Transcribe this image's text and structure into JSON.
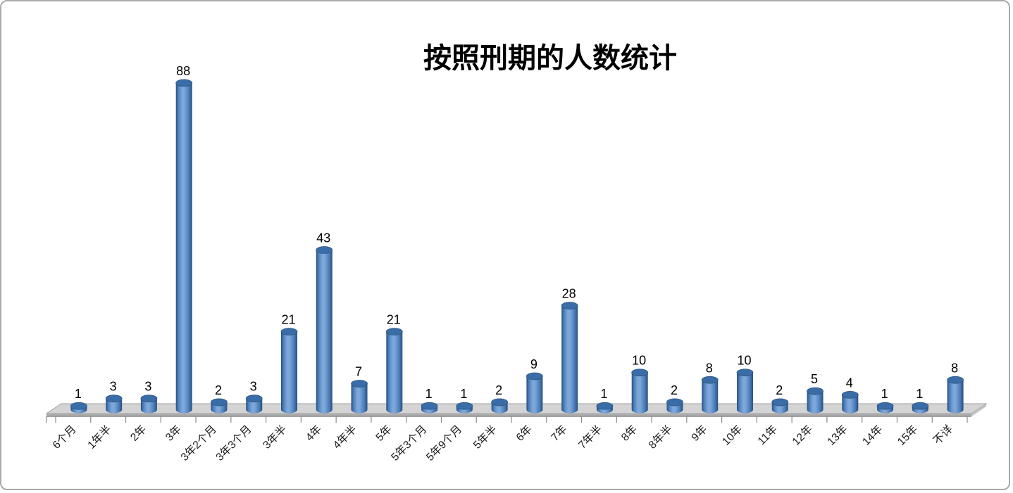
{
  "window": {
    "background": "#ffffff",
    "border_color": "#a9a9a9"
  },
  "chart_data": {
    "type": "bar",
    "subtype": "3d-cylinder",
    "title": "按照刑期的人数统计",
    "categories": [
      "6个月",
      "1年半",
      "2年",
      "3年",
      "3年2个月",
      "3年3个月",
      "3年半",
      "4年",
      "4年半",
      "5年",
      "5年3个月",
      "5年9个月",
      "5年半",
      "6年",
      "7年",
      "7年半",
      "8年",
      "8年半",
      "9年",
      "10年",
      "11年",
      "12年",
      "13年",
      "14年",
      "15年",
      "不详"
    ],
    "values": [
      1,
      3,
      3,
      88,
      2,
      3,
      21,
      43,
      7,
      21,
      1,
      1,
      2,
      9,
      28,
      1,
      10,
      2,
      8,
      10,
      2,
      5,
      4,
      1,
      1,
      8
    ],
    "data_labels_shown": true,
    "xlabel": "",
    "ylabel": "",
    "ylim": [
      0,
      88
    ],
    "legend": "none",
    "gridlines": false,
    "x_labels_rotation_deg": -45,
    "colors": {
      "bar_dark": "#27507f",
      "bar_mid": "#4f81bd",
      "bar_light": "#7da7d9",
      "bar_top": "#3a6da8",
      "bar_top_stroke": "#2c5480",
      "floor_top": "#d4d4d4",
      "floor_stroke": "#a0a0a0",
      "floor_front": "#adadad",
      "floor_side": "#c2c2c2",
      "axis_line": "#8a8a8a",
      "label_color": "#000000"
    }
  }
}
